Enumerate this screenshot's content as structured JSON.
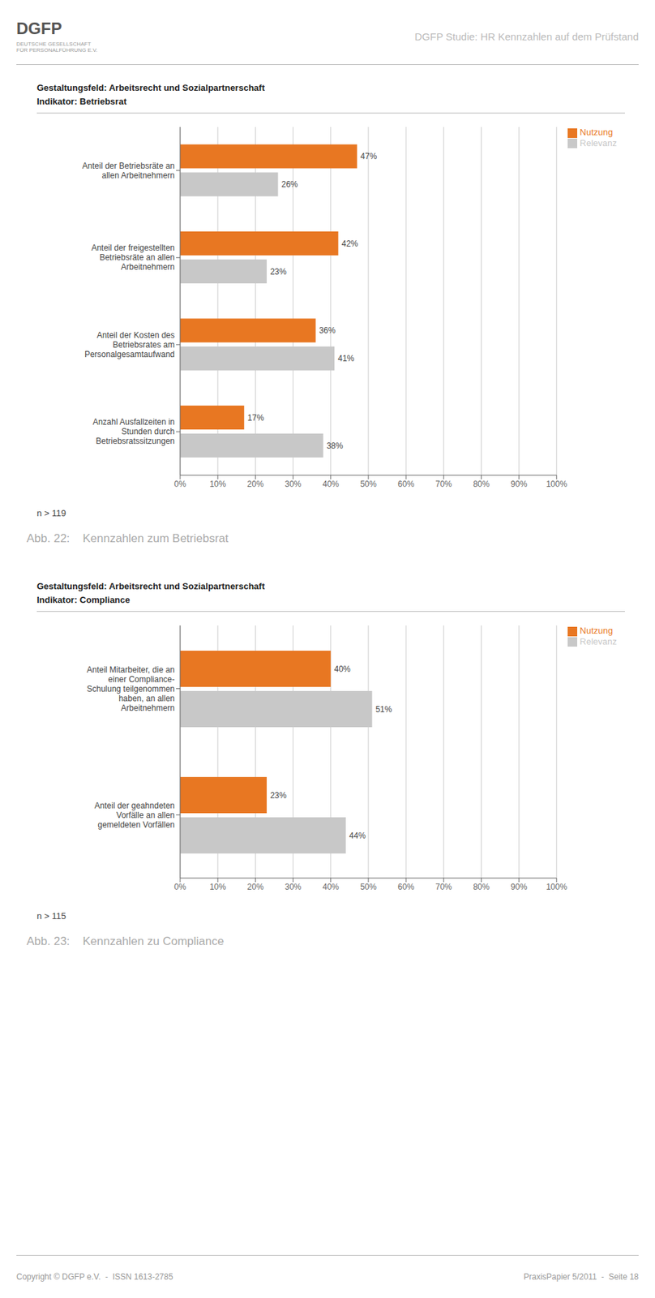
{
  "title": "DGFP Studie: HR Kennzahlen auf dem Prüfstand",
  "annotations": [
    "DGFP",
    "DEUTSCHE GESELLSCHAFT",
    "FÜR PERSONALFÜHRUNG E.V.",
    "Copyright © DGFP e.V.  -  ISSN 1613-2785",
    "PraxisPapier 5/2011  -  Seite 18"
  ],
  "chart_data": [
    {
      "type": "bar",
      "orientation": "horizontal",
      "title": "Gestaltungsfeld: Arbeitsrecht und Sozialpartnerschaft",
      "subtitle": "Indikator: Betriebsrat",
      "categories": [
        "Anteil der Betriebsräte an\nallen Arbeitnehmern",
        "Anteil der freigestellten\nBetriebsräte an allen\nArbeitnehmern",
        "Anteil der Kosten des\nBetriebsrates am\nPersonalgesamtaufwand",
        "Anzahl Ausfallzeiten in\nStunden durch\nBetriebsratssitzungen"
      ],
      "series": [
        {
          "name": "Nutzung",
          "color": "#E87722",
          "values": [
            47,
            42,
            36,
            17
          ],
          "value_labels": [
            "47%",
            "42%",
            "36%",
            "17%"
          ]
        },
        {
          "name": "Relevanz",
          "color": "#C8C8C8",
          "values": [
            26,
            23,
            41,
            38
          ],
          "value_labels": [
            "26%",
            "23%",
            "41%",
            "38%"
          ]
        }
      ],
      "xlim": [
        0,
        100
      ],
      "xticks": [
        {
          "value": 0,
          "label": "0%"
        },
        {
          "value": 10,
          "label": "10%"
        },
        {
          "value": 20,
          "label": "20%"
        },
        {
          "value": 30,
          "label": "30%"
        },
        {
          "value": 40,
          "label": "40%"
        },
        {
          "value": 50,
          "label": "50%"
        },
        {
          "value": 60,
          "label": "60%"
        },
        {
          "value": 70,
          "label": "70%"
        },
        {
          "value": 80,
          "label": "80%"
        },
        {
          "value": 90,
          "label": "90%"
        },
        {
          "value": 100,
          "label": "100%"
        }
      ],
      "grid": true,
      "legend": "right",
      "data_labels": true,
      "annotations": [
        "n > 119",
        "Abb. 22:    Kennzahlen zum Betriebsrat"
      ]
    },
    {
      "type": "bar",
      "orientation": "horizontal",
      "title": "Gestaltungsfeld: Arbeitsrecht und Sozialpartnerschaft",
      "subtitle": "Indikator: Compliance",
      "categories": [
        "Anteil Mitarbeiter, die an\neiner Compliance-\nSchulung teilgenommen\nhaben, an allen\nArbeitnehmern",
        "Anteil der geahndeten\nVorfälle an allen\ngemeldeten Vorfällen"
      ],
      "series": [
        {
          "name": "Nutzung",
          "color": "#E87722",
          "values": [
            40,
            23
          ],
          "value_labels": [
            "40%",
            "23%"
          ]
        },
        {
          "name": "Relevanz",
          "color": "#C8C8C8",
          "values": [
            51,
            44
          ],
          "value_labels": [
            "51%",
            "44%"
          ]
        }
      ],
      "xlim": [
        0,
        100
      ],
      "xticks": [
        {
          "value": 0,
          "label": "0%"
        },
        {
          "value": 10,
          "label": "10%"
        },
        {
          "value": 20,
          "label": "20%"
        },
        {
          "value": 30,
          "label": "30%"
        },
        {
          "value": 40,
          "label": "40%"
        },
        {
          "value": 50,
          "label": "50%"
        },
        {
          "value": 60,
          "label": "60%"
        },
        {
          "value": 70,
          "label": "70%"
        },
        {
          "value": 80,
          "label": "80%"
        },
        {
          "value": 90,
          "label": "90%"
        },
        {
          "value": 100,
          "label": "100%"
        }
      ],
      "grid": true,
      "legend": "right",
      "data_labels": true,
      "annotations": [
        "n > 115",
        "Abb. 23:    Kennzahlen zu Compliance"
      ]
    }
  ]
}
